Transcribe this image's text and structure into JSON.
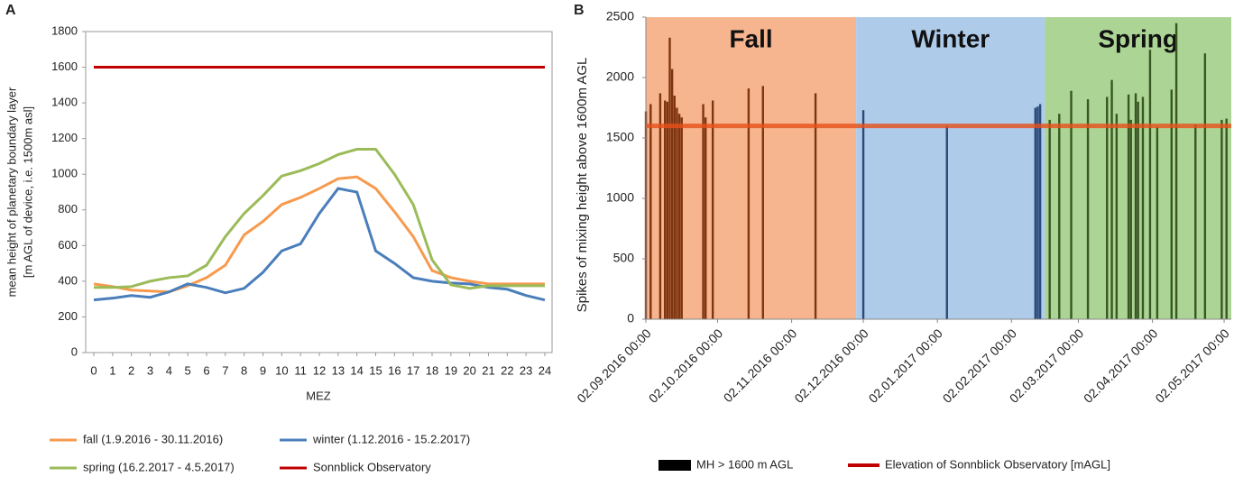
{
  "chart_data": [
    {
      "type": "line",
      "label": "A",
      "xlabel": "MEZ",
      "ylabel": [
        "mean height of planetary boundary layer",
        "[m AGL of device, i.e. 1500m asl]"
      ],
      "x": [
        0,
        1,
        2,
        3,
        4,
        5,
        6,
        7,
        8,
        9,
        10,
        11,
        12,
        13,
        14,
        15,
        16,
        17,
        18,
        19,
        20,
        21,
        22,
        23,
        24
      ],
      "xlim": [
        0,
        24
      ],
      "xticks": [
        0,
        1,
        2,
        3,
        4,
        5,
        6,
        7,
        8,
        9,
        10,
        11,
        12,
        13,
        14,
        15,
        16,
        17,
        18,
        19,
        20,
        21,
        22,
        23,
        24
      ],
      "ylim": [
        0,
        1800
      ],
      "yticks": [
        0,
        200,
        400,
        600,
        800,
        1000,
        1200,
        1400,
        1600,
        1800
      ],
      "legend": "bottom",
      "series": [
        {
          "name": "fall (1.9.2016 - 30.11.2016)",
          "color": "#f79a4e",
          "values": [
            385,
            370,
            350,
            345,
            340,
            375,
            420,
            490,
            660,
            735,
            830,
            870,
            920,
            975,
            985,
            920,
            790,
            650,
            460,
            420,
            400,
            385,
            385,
            385,
            385
          ]
        },
        {
          "name": "winter (1.12.2016 - 15.2.2017)",
          "color": "#4a7ebb",
          "values": [
            295,
            305,
            320,
            310,
            340,
            385,
            365,
            335,
            360,
            450,
            570,
            610,
            780,
            920,
            900,
            570,
            500,
            420,
            400,
            390,
            385,
            365,
            355,
            320,
            295
          ]
        },
        {
          "name": "spring (16.2.2017 - 4.5.2017)",
          "color": "#9bbb59",
          "values": [
            365,
            365,
            370,
            400,
            420,
            430,
            490,
            650,
            780,
            880,
            990,
            1020,
            1060,
            1110,
            1140,
            1140,
            1000,
            830,
            520,
            380,
            360,
            375,
            375,
            375,
            375
          ]
        },
        {
          "name": "Sonnblick Observatory",
          "color": "#c00000",
          "values": [
            1600,
            1600,
            1600,
            1600,
            1600,
            1600,
            1600,
            1600,
            1600,
            1600,
            1600,
            1600,
            1600,
            1600,
            1600,
            1600,
            1600,
            1600,
            1600,
            1600,
            1600,
            1600,
            1600,
            1600,
            1600
          ]
        }
      ]
    },
    {
      "type": "bar",
      "label": "B",
      "ylabel": "Spikes of mixing height above 1600m AGL",
      "xlim": [
        "02.09.2016 00:00",
        "05.05.2017 00:00"
      ],
      "xticks": [
        "02.09.2016 00:00",
        "02.10.2016 00:00",
        "02.11.2016 00:00",
        "02.12.2016 00:00",
        "02.01.2017 00:00",
        "02.02.2017 00:00",
        "02.03.2017 00:00",
        "02.04.2017 00:00",
        "02.05.2017 00:00"
      ],
      "ylim": [
        0,
        2500
      ],
      "yticks": [
        0,
        500,
        1000,
        1500,
        2000,
        2500
      ],
      "legend": "bottom",
      "seasons": [
        {
          "label": "Fall",
          "start": "02.09.2016",
          "end": "29.11.2016",
          "color": "#f6b58e",
          "bar_color": "#7f3510"
        },
        {
          "label": "Winter",
          "start": "29.11.2016",
          "end": "16.02.2017",
          "color": "#aecbea",
          "bar_color": "#2a4a78"
        },
        {
          "label": "Spring",
          "start": "16.02.2017",
          "end": "05.05.2017",
          "color": "#acd595",
          "bar_color": "#385723"
        }
      ],
      "series": [
        {
          "name": "MH > 1600 m AGL",
          "color": "#000000",
          "x": [
            "02.09.2016",
            "04.09.2016",
            "08.09.2016",
            "10.09.2016",
            "11.09.2016",
            "12.09.2016",
            "13.09.2016",
            "14.09.2016",
            "15.09.2016",
            "16.09.2016",
            "17.09.2016",
            "26.09.2016",
            "27.09.2016",
            "30.09.2016",
            "15.10.2016",
            "21.10.2016",
            "12.11.2016",
            "02.12.2016",
            "06.01.2017",
            "12.02.2017",
            "13.02.2017",
            "14.02.2017",
            "18.02.2017",
            "22.02.2017",
            "27.02.2017",
            "06.03.2017",
            "14.03.2017",
            "16.03.2017",
            "18.03.2017",
            "23.03.2017",
            "24.03.2017",
            "26.03.2017",
            "27.03.2017",
            "29.03.2017",
            "01.04.2017",
            "04.04.2017",
            "10.04.2017",
            "12.04.2017",
            "20.04.2017",
            "24.04.2017",
            "01.05.2017",
            "03.05.2017"
          ],
          "values": [
            1720,
            1780,
            1870,
            1810,
            1800,
            2330,
            2070,
            1850,
            1750,
            1700,
            1670,
            1780,
            1670,
            1810,
            1910,
            1930,
            1870,
            1730,
            1600,
            1750,
            1760,
            1780,
            1650,
            1700,
            1890,
            1820,
            1840,
            1980,
            1700,
            1860,
            1650,
            1870,
            1800,
            1840,
            2230,
            1590,
            1900,
            2450,
            1610,
            2200,
            1650,
            1660
          ]
        }
      ],
      "lines": [
        {
          "name": "Elevation of Sonnblick Observatory [mAGL]",
          "color": "#e8501a",
          "value": 1600
        }
      ]
    }
  ]
}
